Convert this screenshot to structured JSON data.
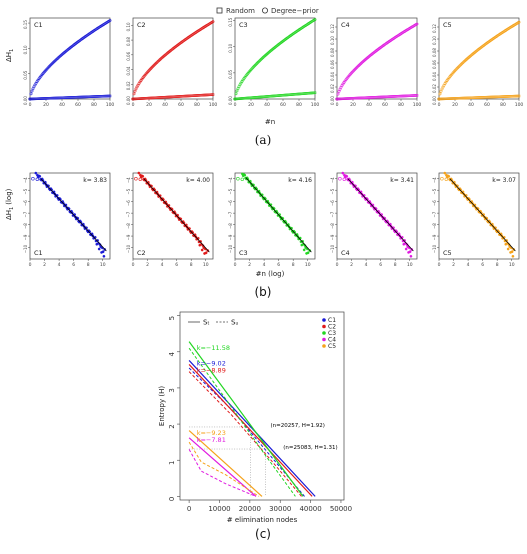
{
  "colors": {
    "C1": "#1a1ad6",
    "C2": "#e01a1a",
    "C3": "#22d622",
    "C4": "#e01ae0",
    "C5": "#f5a21a",
    "fit": "#000000"
  },
  "captions": {
    "a": "(a)",
    "b": "(b)",
    "c": "(c)"
  },
  "panel_a": {
    "legend": [
      "Random",
      "Degree−prior"
    ],
    "xlabel": "#n",
    "ylabel": "ΔH",
    "ylabel_sub": "1"
  },
  "panel_b": {
    "xlabel": "#n (log)",
    "ylabel": "ΔH",
    "ylabel_sub": "1",
    "ylabel_tail": "(log)"
  },
  "chart_data": [
    {
      "type": "scatter",
      "panel": "a",
      "subplots": [
        {
          "label": "C1",
          "xlim": [
            0,
            100
          ],
          "ylim": [
            0,
            0.16
          ],
          "xticks": [
            0,
            20,
            40,
            60,
            80,
            100
          ],
          "yticks": [
            0.0,
            0.05,
            0.1,
            0.15
          ],
          "series": [
            {
              "name": "Random",
              "shape": "linear",
              "end": 0.006
            },
            {
              "name": "Degree−prior",
              "shape": "concave",
              "end": 0.155
            }
          ]
        },
        {
          "label": "C2",
          "xlim": [
            0,
            100
          ],
          "ylim": [
            0,
            0.11
          ],
          "xticks": [
            0,
            20,
            40,
            60,
            80,
            100
          ],
          "yticks": [
            0.0,
            0.02,
            0.04,
            0.06,
            0.08,
            0.1
          ],
          "series": [
            {
              "name": "Random",
              "shape": "linear",
              "end": 0.006
            },
            {
              "name": "Degree−prior",
              "shape": "concave",
              "end": 0.105
            }
          ]
        },
        {
          "label": "C3",
          "xlim": [
            0,
            100
          ],
          "ylim": [
            0,
            0.155
          ],
          "xticks": [
            0,
            20,
            40,
            60,
            80,
            100
          ],
          "yticks": [
            0.0,
            0.05,
            0.1,
            0.15
          ],
          "series": [
            {
              "name": "Random",
              "shape": "linear",
              "end": 0.012
            },
            {
              "name": "Degree−prior",
              "shape": "concave",
              "end": 0.152
            }
          ]
        },
        {
          "label": "C4",
          "xlim": [
            0,
            100
          ],
          "ylim": [
            0,
            0.135
          ],
          "xticks": [
            0,
            20,
            40,
            60,
            80,
            100
          ],
          "yticks": [
            0.0,
            0.02,
            0.04,
            0.06,
            0.08,
            0.1,
            0.12
          ],
          "series": [
            {
              "name": "Random",
              "shape": "linear",
              "end": 0.006
            },
            {
              "name": "Degree−prior",
              "shape": "concave",
              "end": 0.125
            }
          ]
        },
        {
          "label": "C5",
          "xlim": [
            0,
            100
          ],
          "ylim": [
            0,
            0.135
          ],
          "xticks": [
            0,
            20,
            40,
            60,
            80,
            100
          ],
          "yticks": [
            0.0,
            0.02,
            0.04,
            0.06,
            0.08,
            0.1,
            0.12
          ],
          "series": [
            {
              "name": "Random",
              "shape": "linear",
              "end": 0.005
            },
            {
              "name": "Degree−prior",
              "shape": "concave",
              "end": 0.128
            }
          ]
        }
      ]
    },
    {
      "type": "scatter",
      "panel": "b",
      "subplots": [
        {
          "label": "C1",
          "k_label": "k= 3.83",
          "xlim": [
            0,
            11
          ],
          "ylim": [
            -11,
            -3.5
          ],
          "xticks": [
            0,
            2,
            4,
            6,
            8,
            10
          ],
          "yticks": [
            -4,
            -5,
            -6,
            -7,
            -8,
            -9,
            -10
          ],
          "fit": {
            "x0": 1.5,
            "y0": -4.0,
            "x1": 10.5,
            "y1": -10.3
          }
        },
        {
          "label": "C2",
          "k_label": "k= 4.00",
          "xlim": [
            0,
            11
          ],
          "ylim": [
            -11,
            -3.5
          ],
          "xticks": [
            0,
            2,
            4,
            6,
            8,
            10
          ],
          "yticks": [
            -4,
            -5,
            -6,
            -7,
            -8,
            -9,
            -10
          ],
          "fit": {
            "x0": 1.5,
            "y0": -4.0,
            "x1": 10.5,
            "y1": -10.4
          }
        },
        {
          "label": "C3",
          "k_label": "k= 4.16",
          "xlim": [
            0,
            11
          ],
          "ylim": [
            -11,
            -3.5
          ],
          "xticks": [
            0,
            2,
            4,
            6,
            8,
            10
          ],
          "yticks": [
            -4,
            -5,
            -6,
            -7,
            -8,
            -9,
            -10
          ],
          "fit": {
            "x0": 1.5,
            "y0": -3.9,
            "x1": 10.5,
            "y1": -10.4
          }
        },
        {
          "label": "C4",
          "k_label": "k= 3.41",
          "xlim": [
            0,
            11
          ],
          "ylim": [
            -11,
            -3.5
          ],
          "xticks": [
            0,
            2,
            4,
            6,
            8,
            10
          ],
          "yticks": [
            -4,
            -5,
            -6,
            -7,
            -8,
            -9,
            -10
          ],
          "fit": {
            "x0": 1.5,
            "y0": -4.0,
            "x1": 10.5,
            "y1": -10.3
          }
        },
        {
          "label": "C5",
          "k_label": "k= 3.07",
          "xlim": [
            0,
            11
          ],
          "ylim": [
            -11,
            -3.5
          ],
          "xticks": [
            0,
            2,
            4,
            6,
            8,
            10
          ],
          "yticks": [
            -4,
            -5,
            -6,
            -7,
            -8,
            -9,
            -10
          ],
          "fit": {
            "x0": 1.5,
            "y0": -4.0,
            "x1": 10.5,
            "y1": -10.3
          }
        }
      ]
    },
    {
      "type": "line",
      "panel": "c",
      "xlabel": "# elimination nodes",
      "ylabel": "Entropy (H)",
      "xlim": [
        -3000,
        51000
      ],
      "ylim": [
        -0.1,
        5.1
      ],
      "xticks": [
        0,
        10000,
        20000,
        30000,
        40000,
        50000
      ],
      "yticks": [
        0,
        1,
        2,
        3,
        4,
        5
      ],
      "legend_lines": [
        {
          "name": "Sₜ",
          "dash": false
        },
        {
          "name": "Sᵤ",
          "dash": true
        }
      ],
      "legend_colors": [
        "C1",
        "C2",
        "C3",
        "C4",
        "C5"
      ],
      "series": [
        {
          "name": "C1",
          "St": [
            [
              0,
              3.76
            ],
            [
              41500,
              0
            ]
          ],
          "Su": [
            [
              0,
              3.55
            ],
            [
              14000,
              2.4
            ],
            [
              28000,
              1.0
            ],
            [
              38000,
              0
            ]
          ]
        },
        {
          "name": "C2",
          "St": [
            [
              0,
              3.65
            ],
            [
              40500,
              0
            ]
          ],
          "Su": [
            [
              0,
              3.45
            ],
            [
              14000,
              2.25
            ],
            [
              28000,
              0.9
            ],
            [
              37000,
              0
            ]
          ]
        },
        {
          "name": "C3",
          "St": [
            [
              0,
              4.28
            ],
            [
              37500,
              0
            ]
          ],
          "Su": [
            [
              0,
              4.1
            ],
            [
              12000,
              2.7
            ],
            [
              25000,
              1.15
            ],
            [
              35000,
              0
            ]
          ]
        },
        {
          "name": "C4",
          "St": [
            [
              0,
              1.62
            ],
            [
              22000,
              0
            ]
          ],
          "Su": [
            [
              0,
              1.3
            ],
            [
              4000,
              0.7
            ],
            [
              12000,
              0.35
            ],
            [
              22000,
              0
            ]
          ]
        },
        {
          "name": "C5",
          "St": [
            [
              0,
              1.82
            ],
            [
              24000,
              0
            ]
          ],
          "Su": [
            [
              0,
              1.5
            ],
            [
              4000,
              0.95
            ],
            [
              12000,
              0.6
            ],
            [
              23000,
              0
            ]
          ]
        }
      ],
      "annotations": [
        {
          "text": "k=−11.58",
          "color": "C3",
          "x": 2500,
          "y": 4.05
        },
        {
          "text": "k=−9.02",
          "color": "C1",
          "x": 2500,
          "y": 3.62
        },
        {
          "text": "k=−8.89",
          "color": "C2",
          "x": 2500,
          "y": 3.42
        },
        {
          "text": "k=−9.23",
          "color": "C5",
          "x": 2500,
          "y": 1.7
        },
        {
          "text": "k=−7.81",
          "color": "C4",
          "x": 2500,
          "y": 1.5
        },
        {
          "text": "(n=20257, H=1.92)",
          "color": "fit",
          "x": 26800,
          "y": 1.92
        },
        {
          "text": "(n=25083, H=1.31)",
          "color": "fit",
          "x": 31000,
          "y": 1.31
        }
      ],
      "marked_points": [
        {
          "x": 20257,
          "y": 1.92
        },
        {
          "x": 25083,
          "y": 1.31
        }
      ]
    }
  ]
}
